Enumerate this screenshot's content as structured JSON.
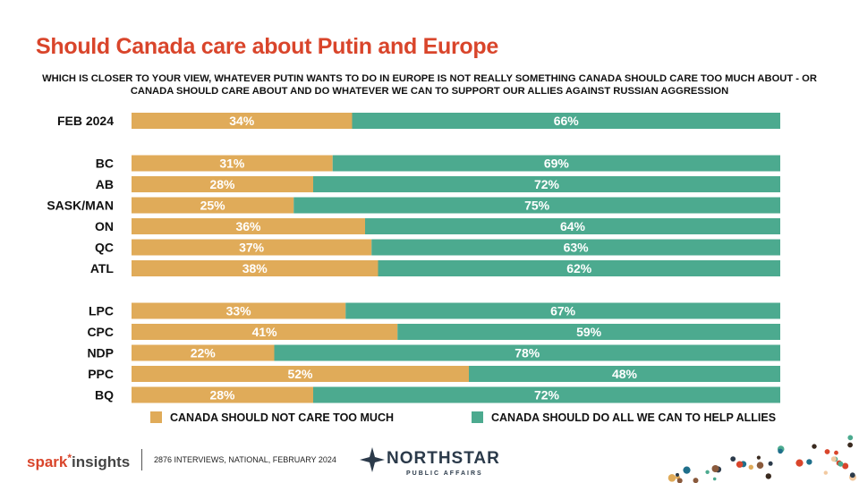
{
  "title": "Should Canada care about Putin and Europe",
  "question": "WHICH IS CLOSER TO YOUR VIEW, WHATEVER PUTIN WANTS TO DO IN EUROPE IS NOT REALLY SOMETHING CANADA SHOULD CARE TOO MUCH ABOUT - OR CANADA SHOULD CARE ABOUT AND DO WHATEVER WE CAN TO SUPPORT OUR ALLIES AGAINST RUSSIAN AGGRESSION",
  "colors": {
    "title": "#d9452b",
    "not_care": "#e0ab59",
    "help_allies": "#4caa8f"
  },
  "chart_data": {
    "type": "bar",
    "orientation": "horizontal",
    "stacked": true,
    "groups": [
      [
        "FEB 2024"
      ],
      [
        "BC",
        "AB",
        "SASK/MAN",
        "ON",
        "QC",
        "ATL"
      ],
      [
        "LPC",
        "CPC",
        "NDP",
        "PPC",
        "BQ"
      ]
    ],
    "categories": [
      "FEB 2024",
      "BC",
      "AB",
      "SASK/MAN",
      "ON",
      "QC",
      "ATL",
      "LPC",
      "CPC",
      "NDP",
      "PPC",
      "BQ"
    ],
    "series": [
      {
        "name": "CANADA SHOULD NOT CARE TOO MUCH",
        "values": [
          34,
          31,
          28,
          25,
          36,
          37,
          38,
          33,
          41,
          22,
          52,
          28
        ]
      },
      {
        "name": "CANADA SHOULD DO ALL WE CAN TO HELP ALLIES",
        "values": [
          66,
          69,
          72,
          75,
          64,
          63,
          62,
          67,
          59,
          78,
          48,
          72
        ]
      }
    ],
    "unit": "%",
    "xlim": [
      0,
      100
    ],
    "grid": false,
    "legend_position": "bottom"
  },
  "footer": {
    "brand_part1": "spark",
    "brand_star": "*",
    "brand_part2": "insights",
    "fieldnote": "2876 INTERVIEWS, NATIONAL, FEBRUARY 2024",
    "partner_name": "NORTHSTAR",
    "partner_sub": "PUBLIC AFFAIRS"
  }
}
